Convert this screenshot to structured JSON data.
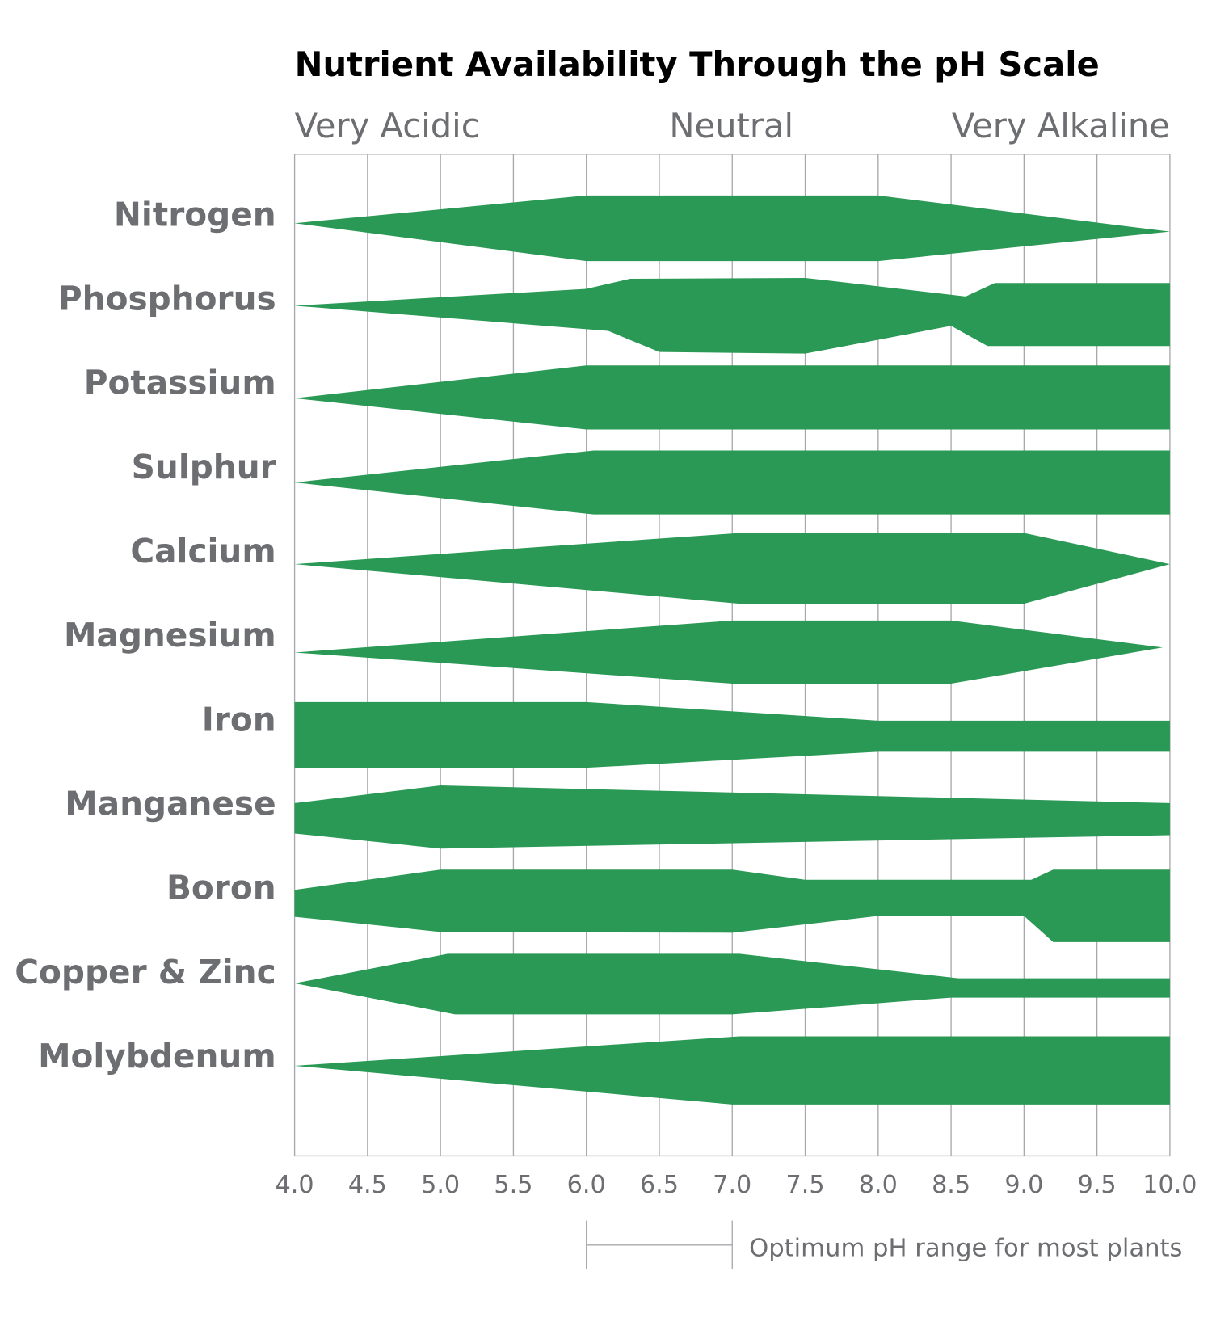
{
  "chart_data": {
    "type": "area",
    "title": "Nutrient Availability Through the pH Scale",
    "zone_labels": [
      "Very Acidic",
      "Neutral",
      "Very Alkaline"
    ],
    "x_ticks": [
      "4.0",
      "4.5",
      "5.0",
      "5.5",
      "6.0",
      "6.5",
      "7.0",
      "7.5",
      "8.0",
      "8.5",
      "9.0",
      "9.5",
      "10.0"
    ],
    "xlim": [
      4.0,
      10.0
    ],
    "grid": true,
    "color": "#2a9955",
    "optimum_range": {
      "label": "Optimum pH range for most plants",
      "from": 6.0,
      "to": 7.0
    },
    "band_note": "relative availability: top/bottom band edges around each nutrient's centerline (larger spread = more available)",
    "series": [
      {
        "name": "Nitrogen",
        "top": [
          [
            4.0,
            -0.06
          ],
          [
            6.0,
            -0.39
          ],
          [
            8.0,
            -0.39
          ],
          [
            10.0,
            0.04
          ]
        ],
        "bottom": [
          [
            4.0,
            -0.06
          ],
          [
            6.0,
            0.39
          ],
          [
            8.0,
            0.39
          ],
          [
            10.0,
            0.04
          ]
        ]
      },
      {
        "name": "Phosphorus",
        "top": [
          [
            4.0,
            -0.08
          ],
          [
            6.0,
            -0.28
          ],
          [
            6.3,
            -0.4
          ],
          [
            7.5,
            -0.41
          ],
          [
            8.6,
            -0.19
          ],
          [
            8.8,
            -0.35
          ],
          [
            10.0,
            -0.35
          ]
        ],
        "bottom": [
          [
            4.0,
            -0.08
          ],
          [
            6.15,
            0.22
          ],
          [
            6.5,
            0.47
          ],
          [
            7.5,
            0.49
          ],
          [
            8.5,
            0.16
          ],
          [
            8.75,
            0.4
          ],
          [
            10.0,
            0.4
          ]
        ]
      },
      {
        "name": "Potassium",
        "top": [
          [
            4.0,
            0.02
          ],
          [
            6.0,
            -0.37
          ],
          [
            10.0,
            -0.37
          ]
        ],
        "bottom": [
          [
            4.0,
            0.02
          ],
          [
            6.0,
            0.39
          ],
          [
            10.0,
            0.39
          ]
        ]
      },
      {
        "name": "Sulphur",
        "top": [
          [
            4.0,
            0.02
          ],
          [
            6.05,
            -0.36
          ],
          [
            10.0,
            -0.36
          ]
        ],
        "bottom": [
          [
            4.0,
            0.02
          ],
          [
            6.05,
            0.4
          ],
          [
            10.0,
            0.4
          ]
        ]
      },
      {
        "name": "Calcium",
        "top": [
          [
            4.0,
            -0.01
          ],
          [
            7.05,
            -0.38
          ],
          [
            9.0,
            -0.38
          ],
          [
            10.0,
            -0.01
          ]
        ],
        "bottom": [
          [
            4.0,
            -0.01
          ],
          [
            7.05,
            0.46
          ],
          [
            9.0,
            0.46
          ],
          [
            10.0,
            -0.01
          ]
        ]
      },
      {
        "name": "Magnesium",
        "top": [
          [
            4.0,
            0.04
          ],
          [
            7.0,
            -0.34
          ],
          [
            8.5,
            -0.34
          ],
          [
            9.95,
            -0.02
          ]
        ],
        "bottom": [
          [
            4.0,
            0.04
          ],
          [
            7.0,
            0.41
          ],
          [
            8.5,
            0.41
          ],
          [
            9.95,
            -0.02
          ]
        ]
      },
      {
        "name": "Iron",
        "top": [
          [
            4.0,
            -0.37
          ],
          [
            6.0,
            -0.37
          ],
          [
            8.0,
            -0.15
          ],
          [
            10.0,
            -0.15
          ]
        ],
        "bottom": [
          [
            4.0,
            0.41
          ],
          [
            6.0,
            0.41
          ],
          [
            8.0,
            0.22
          ],
          [
            10.0,
            0.22
          ]
        ]
      },
      {
        "name": "Manganese",
        "top": [
          [
            4.0,
            -0.17
          ],
          [
            5.0,
            -0.38
          ],
          [
            10.0,
            -0.17
          ]
        ],
        "bottom": [
          [
            4.0,
            0.19
          ],
          [
            5.0,
            0.37
          ],
          [
            10.0,
            0.21
          ]
        ]
      },
      {
        "name": "Boron",
        "top": [
          [
            4.0,
            -0.14
          ],
          [
            5.0,
            -0.38
          ],
          [
            7.0,
            -0.38
          ],
          [
            7.5,
            -0.26
          ],
          [
            9.05,
            -0.26
          ],
          [
            9.2,
            -0.38
          ],
          [
            10.0,
            -0.38
          ]
        ],
        "bottom": [
          [
            4.0,
            0.18
          ],
          [
            5.0,
            0.36
          ],
          [
            7.0,
            0.37
          ],
          [
            8.0,
            0.17
          ],
          [
            9.0,
            0.17
          ],
          [
            9.2,
            0.48
          ],
          [
            10.0,
            0.48
          ]
        ]
      },
      {
        "name": "Copper & Zinc",
        "top": [
          [
            4.0,
            -0.03
          ],
          [
            5.05,
            -0.38
          ],
          [
            7.05,
            -0.38
          ],
          [
            8.55,
            -0.09
          ],
          [
            10.0,
            -0.09
          ]
        ],
        "bottom": [
          [
            4.0,
            -0.03
          ],
          [
            5.1,
            0.34
          ],
          [
            7.0,
            0.34
          ],
          [
            8.5,
            0.14
          ],
          [
            10.0,
            0.14
          ]
        ]
      },
      {
        "name": "Molybdenum",
        "top": [
          [
            4.0,
            -0.05
          ],
          [
            7.05,
            -0.4
          ],
          [
            10.0,
            -0.4
          ]
        ],
        "bottom": [
          [
            4.0,
            -0.05
          ],
          [
            7.0,
            0.41
          ],
          [
            10.0,
            0.41
          ]
        ]
      }
    ]
  }
}
